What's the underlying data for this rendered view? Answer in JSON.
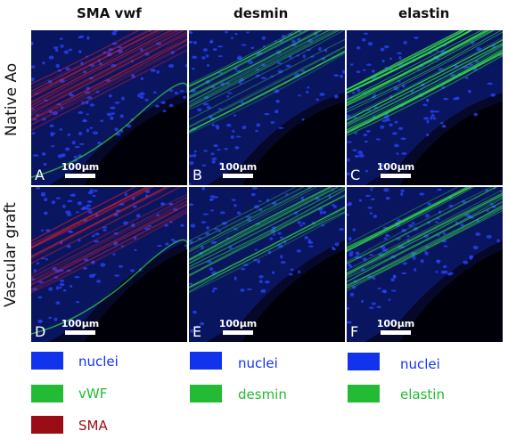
{
  "columns": [
    "SMA vwf",
    "desmin",
    "elastin"
  ],
  "rows": [
    "Native Ao",
    "Vascular graft"
  ],
  "panels": [
    {
      "letter": "A",
      "scale": "100μm",
      "stain": "sma"
    },
    {
      "letter": "B",
      "scale": "100μm",
      "stain": "desmin"
    },
    {
      "letter": "C",
      "scale": "100μm",
      "stain": "elastin"
    },
    {
      "letter": "D",
      "scale": "100μm",
      "stain": "sma"
    },
    {
      "letter": "E",
      "scale": "100μm",
      "stain": "desmin"
    },
    {
      "letter": "F",
      "scale": "100μm",
      "stain": "elastin"
    }
  ],
  "legend": {
    "col1": [
      {
        "label": "nuclei",
        "color": "#1133ee"
      },
      {
        "label": "vWF",
        "color": "#22bb33"
      },
      {
        "label": "SMA",
        "color": "#9b0d16"
      }
    ],
    "col2": [
      {
        "label": "nuclei",
        "color": "#1133ee"
      },
      {
        "label": "desmin",
        "color": "#22bb33"
      }
    ],
    "col3": [
      {
        "label": "nuclei",
        "color": "#1133ee"
      },
      {
        "label": "elastin",
        "color": "#22bb33"
      }
    ]
  },
  "colors": {
    "nuclei": "#1133ee",
    "green": "#22bb33",
    "red": "#9b0d16"
  }
}
